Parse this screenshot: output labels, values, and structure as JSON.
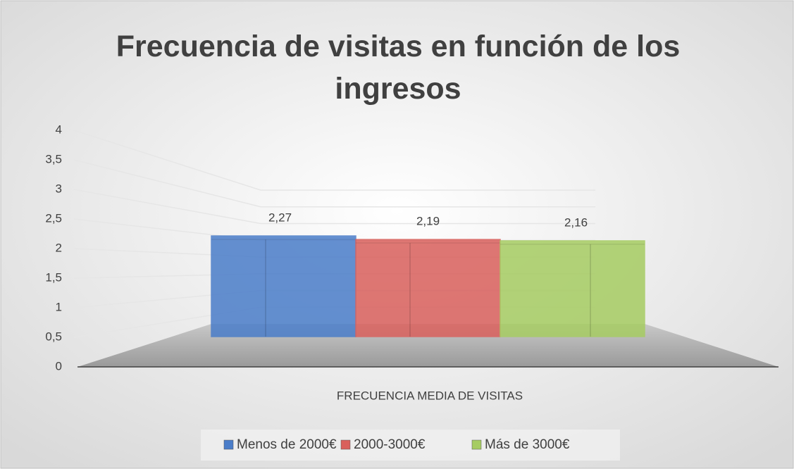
{
  "chart_data": {
    "type": "bar3d",
    "title": "Frecuencia de visitas en función de los ingresos",
    "categories": [
      "FRECUENCIA MEDIA DE VISITAS"
    ],
    "series": [
      {
        "name": "Menos de 2000€",
        "color": "#4a7dc9",
        "values": [
          2.27
        ],
        "value_labels": [
          "2,27"
        ]
      },
      {
        "name": "2000-3000€",
        "color": "#d9605c",
        "values": [
          2.19
        ],
        "value_labels": [
          "2,19"
        ]
      },
      {
        "name": "Más de 3000€",
        "color": "#a6cc62",
        "values": [
          2.16
        ],
        "value_labels": [
          "2,16"
        ]
      }
    ],
    "ylim": [
      0,
      4
    ],
    "yticks": [
      0,
      {
        "value": 0.5,
        "label": "0,5"
      },
      1,
      {
        "value": 1.5,
        "label": "1,5"
      },
      2,
      {
        "value": 2.5,
        "label": "2,5"
      },
      3,
      {
        "value": 3.5,
        "label": "3,5"
      },
      4
    ],
    "grid": true,
    "legend": "bottom"
  }
}
